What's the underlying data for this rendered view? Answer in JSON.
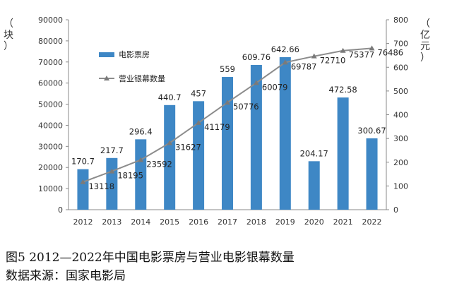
{
  "chart_data": {
    "type": "bar+line",
    "categories": [
      "2012",
      "2013",
      "2014",
      "2015",
      "2016",
      "2017",
      "2018",
      "2019",
      "2020",
      "2021",
      "2022"
    ],
    "bars": {
      "name": "电影票房",
      "axis": "right",
      "values": [
        170.7,
        217.7,
        296.4,
        440.7,
        457,
        559,
        609.76,
        642.66,
        204.17,
        472.58,
        300.67
      ],
      "labels": [
        "170.7",
        "217.7",
        "296.4",
        "440.7",
        "457",
        "559",
        "609.76",
        "642.66",
        "204.17",
        "472.58",
        "300.67"
      ],
      "color": "#3E87C5"
    },
    "line": {
      "name": "营业银幕数量",
      "axis": "left",
      "values": [
        13118,
        18195,
        23592,
        31627,
        41179,
        50776,
        60079,
        69787,
        72710,
        75377,
        76486
      ],
      "labels": [
        "13118",
        "18195",
        "23592",
        "31627",
        "41179",
        "50776",
        "60079",
        "69787",
        "72710",
        "75377",
        "76486"
      ],
      "color": "#8C8C8C"
    },
    "left_axis": {
      "unit_label": [
        "（",
        "块",
        "）"
      ],
      "ylim": [
        0,
        90000
      ],
      "ticks": [
        "0",
        "10000",
        "20000",
        "30000",
        "40000",
        "50000",
        "60000",
        "70000",
        "80000",
        "90000"
      ]
    },
    "right_axis": {
      "unit_label": [
        "（",
        "亿",
        "元",
        "）"
      ],
      "ylim": [
        0,
        800
      ],
      "ticks": [
        "0",
        "100",
        "200",
        "300",
        "400",
        "500",
        "600",
        "700",
        "800"
      ]
    },
    "legend_placement": "top-left",
    "grid": false
  },
  "caption": {
    "title": "图5  2012—2022年中国电影票房与营业电影银幕数量",
    "source": "数据来源：国家电影局"
  }
}
